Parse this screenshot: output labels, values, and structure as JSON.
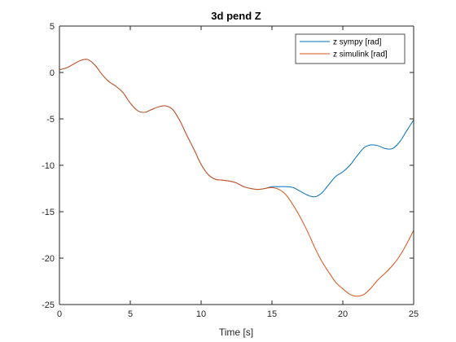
{
  "chart_data": {
    "type": "line",
    "title": "3d pend Z",
    "xlabel": "Time [s]",
    "ylabel": "",
    "xlim": [
      0,
      25
    ],
    "ylim": [
      -25,
      5
    ],
    "xticks": [
      0,
      5,
      10,
      15,
      20,
      25
    ],
    "yticks": [
      -25,
      -20,
      -15,
      -10,
      -5,
      0,
      5
    ],
    "grid": false,
    "legend_position": "top-right",
    "series": [
      {
        "name": "z sympy [rad]",
        "color": "#0072BD",
        "x": [
          0,
          0.5,
          1,
          1.5,
          2,
          2.5,
          3,
          3.5,
          4,
          4.5,
          5,
          5.5,
          6,
          6.5,
          7,
          7.5,
          8,
          8.5,
          9,
          9.5,
          10,
          10.5,
          11,
          11.5,
          12,
          12.5,
          13,
          13.5,
          14,
          14.5,
          15,
          15.5,
          16,
          16.5,
          17,
          17.5,
          18,
          18.5,
          19,
          19.5,
          20,
          20.5,
          21,
          21.5,
          22,
          22.5,
          23,
          23.5,
          24,
          24.5,
          25
        ],
        "y": [
          0.3,
          0.5,
          0.9,
          1.3,
          1.4,
          0.8,
          -0.2,
          -1.0,
          -1.5,
          -2.2,
          -3.3,
          -4.1,
          -4.3,
          -4.0,
          -3.7,
          -3.6,
          -4.0,
          -5.2,
          -6.8,
          -8.3,
          -9.9,
          -11.0,
          -11.5,
          -11.6,
          -11.7,
          -11.9,
          -12.3,
          -12.5,
          -12.6,
          -12.5,
          -12.3,
          -12.3,
          -12.3,
          -12.4,
          -12.8,
          -13.2,
          -13.4,
          -13.0,
          -12.1,
          -11.2,
          -10.7,
          -10.0,
          -9.0,
          -8.1,
          -7.8,
          -7.9,
          -8.2,
          -8.2,
          -7.5,
          -6.3,
          -5.1
        ]
      },
      {
        "name": "z simulink [rad]",
        "color": "#D95319",
        "x": [
          0,
          0.5,
          1,
          1.5,
          2,
          2.5,
          3,
          3.5,
          4,
          4.5,
          5,
          5.5,
          6,
          6.5,
          7,
          7.5,
          8,
          8.5,
          9,
          9.5,
          10,
          10.5,
          11,
          11.5,
          12,
          12.5,
          13,
          13.5,
          14,
          14.5,
          15,
          15.5,
          16,
          16.5,
          17,
          17.5,
          18,
          18.5,
          19,
          19.5,
          20,
          20.5,
          21,
          21.5,
          22,
          22.5,
          23,
          23.5,
          24,
          24.5,
          25
        ],
        "y": [
          0.3,
          0.5,
          0.9,
          1.3,
          1.4,
          0.8,
          -0.2,
          -1.0,
          -1.5,
          -2.2,
          -3.3,
          -4.1,
          -4.3,
          -4.0,
          -3.7,
          -3.6,
          -4.0,
          -5.2,
          -6.8,
          -8.3,
          -9.9,
          -11.0,
          -11.5,
          -11.6,
          -11.7,
          -11.9,
          -12.3,
          -12.5,
          -12.6,
          -12.5,
          -12.4,
          -12.6,
          -13.2,
          -14.3,
          -15.6,
          -17.1,
          -18.8,
          -20.3,
          -21.5,
          -22.6,
          -23.3,
          -23.9,
          -24.1,
          -23.9,
          -23.2,
          -22.3,
          -21.6,
          -20.8,
          -19.8,
          -18.5,
          -17.0
        ]
      }
    ]
  }
}
